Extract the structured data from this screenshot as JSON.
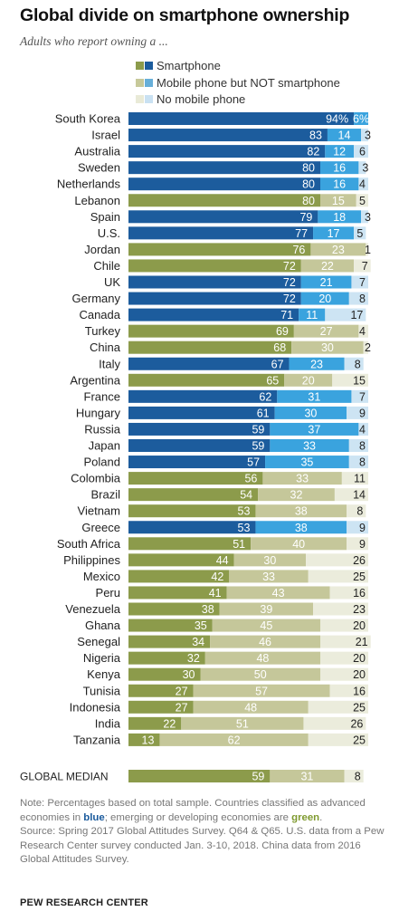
{
  "title": "Global divide on smartphone ownership",
  "subtitle": "Adults who report owning a ...",
  "legend": [
    {
      "label": "Smartphone",
      "colors": [
        "#8c9b4b",
        "#1c5c9d"
      ]
    },
    {
      "label": "Mobile phone but NOT smartphone",
      "colors": [
        "#c7c99a",
        "#67afd9"
      ]
    },
    {
      "label": "No mobile phone",
      "colors": [
        "#e9ead7",
        "#c9e1f2"
      ]
    }
  ],
  "colors": {
    "advanced": [
      "#1c5c9d",
      "#3aa3de",
      "#cde4f3"
    ],
    "emerging": [
      "#8c9b4b",
      "#c5c79a",
      "#ebecdc"
    ]
  },
  "note_parts": {
    "before_blue": "Note: Percentages based on total sample. Countries classified as advanced economies in ",
    "blue": "blue",
    "between": "; emerging or developing economies are ",
    "green": "green",
    "after_green": "."
  },
  "source_note": "Source: Spring 2017 Global Attitudes Survey. Q64 & Q65. U.S. data from a Pew Research Center survey conducted Jan. 3-10, 2018. China data from 2016 Global Attitudes Survey.",
  "footer": "PEW RESEARCH CENTER",
  "chart_data": {
    "type": "bar",
    "orientation": "horizontal",
    "stacked": true,
    "title": "Global divide on smartphone ownership",
    "subtitle": "Adults who report owning a ...",
    "xlim": [
      0,
      100
    ],
    "series_names": [
      "Smartphone",
      "Mobile phone but NOT smartphone",
      "No mobile phone"
    ],
    "rows": [
      {
        "country": "South Korea",
        "values": [
          94,
          6,
          0
        ],
        "labels": [
          "94%",
          "6%",
          ""
        ],
        "group": "advanced"
      },
      {
        "country": "Israel",
        "values": [
          83,
          14,
          3
        ],
        "labels": [
          "83",
          "14",
          "3"
        ],
        "group": "advanced"
      },
      {
        "country": "Australia",
        "values": [
          82,
          12,
          6
        ],
        "labels": [
          "82",
          "12",
          "6"
        ],
        "group": "advanced"
      },
      {
        "country": "Sweden",
        "values": [
          80,
          16,
          3
        ],
        "labels": [
          "80",
          "16",
          "3"
        ],
        "group": "advanced"
      },
      {
        "country": "Netherlands",
        "values": [
          80,
          16,
          4
        ],
        "labels": [
          "80",
          "16",
          "4"
        ],
        "group": "advanced"
      },
      {
        "country": "Lebanon",
        "values": [
          80,
          15,
          5
        ],
        "labels": [
          "80",
          "15",
          "5"
        ],
        "group": "emerging"
      },
      {
        "country": "Spain",
        "values": [
          79,
          18,
          3
        ],
        "labels": [
          "79",
          "18",
          "3"
        ],
        "group": "advanced"
      },
      {
        "country": "U.S.",
        "values": [
          77,
          17,
          5
        ],
        "labels": [
          "77",
          "17",
          "5"
        ],
        "group": "advanced"
      },
      {
        "country": "Jordan",
        "values": [
          76,
          23,
          1
        ],
        "labels": [
          "76",
          "23",
          "1"
        ],
        "group": "emerging"
      },
      {
        "country": "Chile",
        "values": [
          72,
          22,
          7
        ],
        "labels": [
          "72",
          "22",
          "7"
        ],
        "group": "emerging"
      },
      {
        "country": "UK",
        "values": [
          72,
          21,
          7
        ],
        "labels": [
          "72",
          "21",
          "7"
        ],
        "group": "advanced"
      },
      {
        "country": "Germany",
        "values": [
          72,
          20,
          8
        ],
        "labels": [
          "72",
          "20",
          "8"
        ],
        "group": "advanced"
      },
      {
        "country": "Canada",
        "values": [
          71,
          11,
          17
        ],
        "labels": [
          "71",
          "11",
          "17"
        ],
        "group": "advanced"
      },
      {
        "country": "Turkey",
        "values": [
          69,
          27,
          4
        ],
        "labels": [
          "69",
          "27",
          "4"
        ],
        "group": "emerging"
      },
      {
        "country": "China",
        "values": [
          68,
          30,
          2
        ],
        "labels": [
          "68",
          "30",
          "2"
        ],
        "group": "emerging"
      },
      {
        "country": "Italy",
        "values": [
          67,
          23,
          8
        ],
        "labels": [
          "67",
          "23",
          "8"
        ],
        "group": "advanced"
      },
      {
        "country": "Argentina",
        "values": [
          65,
          20,
          15
        ],
        "labels": [
          "65",
          "20",
          "15"
        ],
        "group": "emerging"
      },
      {
        "country": "France",
        "values": [
          62,
          31,
          7
        ],
        "labels": [
          "62",
          "31",
          "7"
        ],
        "group": "advanced"
      },
      {
        "country": "Hungary",
        "values": [
          61,
          30,
          9
        ],
        "labels": [
          "61",
          "30",
          "9"
        ],
        "group": "advanced"
      },
      {
        "country": "Russia",
        "values": [
          59,
          37,
          4
        ],
        "labels": [
          "59",
          "37",
          "4"
        ],
        "group": "advanced"
      },
      {
        "country": "Japan",
        "values": [
          59,
          33,
          8
        ],
        "labels": [
          "59",
          "33",
          "8"
        ],
        "group": "advanced"
      },
      {
        "country": "Poland",
        "values": [
          57,
          35,
          8
        ],
        "labels": [
          "57",
          "35",
          "8"
        ],
        "group": "advanced"
      },
      {
        "country": "Colombia",
        "values": [
          56,
          33,
          11
        ],
        "labels": [
          "56",
          "33",
          "11"
        ],
        "group": "emerging"
      },
      {
        "country": "Brazil",
        "values": [
          54,
          32,
          14
        ],
        "labels": [
          "54",
          "32",
          "14"
        ],
        "group": "emerging"
      },
      {
        "country": "Vietnam",
        "values": [
          53,
          38,
          8
        ],
        "labels": [
          "53",
          "38",
          "8"
        ],
        "group": "emerging"
      },
      {
        "country": "Greece",
        "values": [
          53,
          38,
          9
        ],
        "labels": [
          "53",
          "38",
          "9"
        ],
        "group": "advanced"
      },
      {
        "country": "South Africa",
        "values": [
          51,
          40,
          9
        ],
        "labels": [
          "51",
          "40",
          "9"
        ],
        "group": "emerging"
      },
      {
        "country": "Philippines",
        "values": [
          44,
          30,
          26
        ],
        "labels": [
          "44",
          "30",
          "26"
        ],
        "group": "emerging"
      },
      {
        "country": "Mexico",
        "values": [
          42,
          33,
          25
        ],
        "labels": [
          "42",
          "33",
          "25"
        ],
        "group": "emerging"
      },
      {
        "country": "Peru",
        "values": [
          41,
          43,
          16
        ],
        "labels": [
          "41",
          "43",
          "16"
        ],
        "group": "emerging"
      },
      {
        "country": "Venezuela",
        "values": [
          38,
          39,
          23
        ],
        "labels": [
          "38",
          "39",
          "23"
        ],
        "group": "emerging"
      },
      {
        "country": "Ghana",
        "values": [
          35,
          45,
          20
        ],
        "labels": [
          "35",
          "45",
          "20"
        ],
        "group": "emerging"
      },
      {
        "country": "Senegal",
        "values": [
          34,
          46,
          21
        ],
        "labels": [
          "34",
          "46",
          "21"
        ],
        "group": "emerging"
      },
      {
        "country": "Nigeria",
        "values": [
          32,
          48,
          20
        ],
        "labels": [
          "32",
          "48",
          "20"
        ],
        "group": "emerging"
      },
      {
        "country": "Kenya",
        "values": [
          30,
          50,
          20
        ],
        "labels": [
          "30",
          "50",
          "20"
        ],
        "group": "emerging"
      },
      {
        "country": "Tunisia",
        "values": [
          27,
          57,
          16
        ],
        "labels": [
          "27",
          "57",
          "16"
        ],
        "group": "emerging"
      },
      {
        "country": "Indonesia",
        "values": [
          27,
          48,
          25
        ],
        "labels": [
          "27",
          "48",
          "25"
        ],
        "group": "emerging"
      },
      {
        "country": "India",
        "values": [
          22,
          51,
          26
        ],
        "labels": [
          "22",
          "51",
          "26"
        ],
        "group": "emerging"
      },
      {
        "country": "Tanzania",
        "values": [
          13,
          62,
          25
        ],
        "labels": [
          "13",
          "62",
          "25"
        ],
        "group": "emerging"
      }
    ],
    "median": {
      "country": "GLOBAL MEDIAN",
      "values": [
        59,
        31,
        8
      ],
      "labels": [
        "59",
        "31",
        "8"
      ],
      "group": "emerging"
    }
  }
}
